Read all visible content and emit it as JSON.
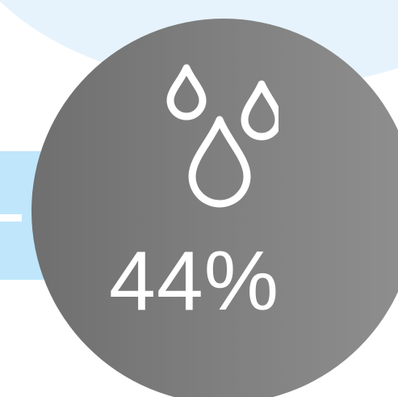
{
  "weather_widget": {
    "humidity": {
      "value_label": "44%",
      "icon": "water-drops-icon",
      "colors": {
        "circle": "#7e7e7e",
        "text": "#ffffff",
        "accent_band": "#bfe6fb",
        "background_arc": "#e6f3fc"
      }
    }
  }
}
